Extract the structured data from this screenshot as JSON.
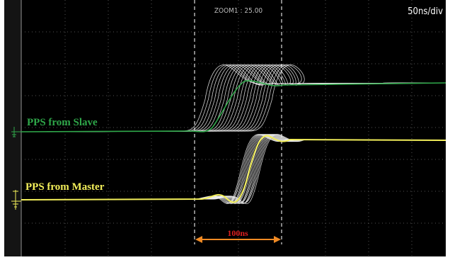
{
  "screen": {
    "zoom_label": "ZOOM1 : 25.00",
    "timebase": "50ns/div"
  },
  "traces": [
    {
      "label": "PPS from Slave"
    },
    {
      "label": "PPS from Master"
    }
  ],
  "measurement": {
    "label": "100ns"
  }
}
